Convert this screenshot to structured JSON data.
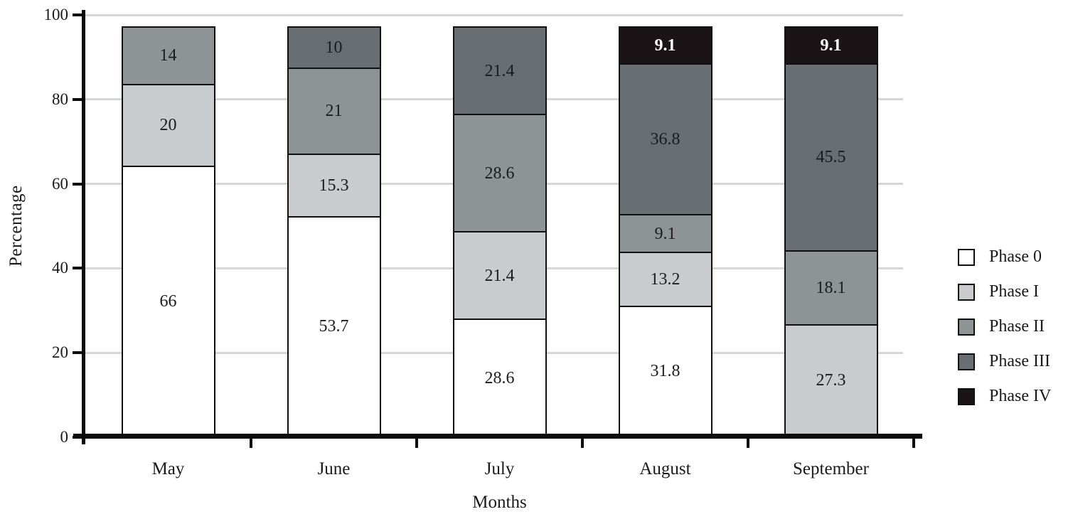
{
  "figure": {
    "background_color": "#ffffff",
    "axis_color": "#0c0c0c",
    "gridline_color": "#d4d6d7",
    "text_color": "#1a1a1a"
  },
  "chart_data": {
    "type": "bar",
    "stacked": true,
    "title": "",
    "xlabel": "Months",
    "ylabel": "Percentage",
    "ylim": [
      0,
      100
    ],
    "yticks": [
      0,
      20,
      40,
      60,
      80,
      100
    ],
    "grid": true,
    "legend_position": "right",
    "bar_top_fraction": 0.973,
    "categories": [
      "May",
      "June",
      "July",
      "August",
      "September"
    ],
    "series": [
      {
        "name": "Phase 0",
        "color": "#ffffff",
        "label_color": "#1c1c1c",
        "label_bold": false,
        "values": [
          66,
          53.7,
          28.6,
          31.8,
          0
        ]
      },
      {
        "name": "Phase I",
        "color": "#c8cccf",
        "label_color": "#1c1c1c",
        "label_bold": false,
        "values": [
          20,
          15.3,
          21.4,
          13.2,
          27.3
        ]
      },
      {
        "name": "Phase II",
        "color": "#8e9396",
        "label_color": "#1c1c1c",
        "label_bold": false,
        "values": [
          14,
          21,
          28.6,
          9.1,
          18.1
        ]
      },
      {
        "name": "Phase III",
        "color": "#686e72",
        "label_color": "#1c1c1c",
        "label_bold": false,
        "values": [
          0,
          10,
          21.4,
          36.8,
          45.5
        ]
      },
      {
        "name": "Phase IV",
        "color": "#1a1416",
        "label_color": "#ffffff",
        "label_bold": true,
        "values": [
          0,
          0,
          0,
          9.1,
          9.1
        ]
      }
    ]
  }
}
